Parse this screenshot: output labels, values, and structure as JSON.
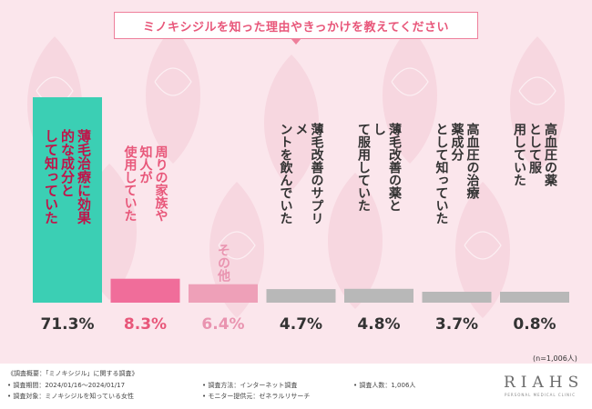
{
  "title": "ミノキシジルを知った理由やきっかけを教えてください",
  "colors": {
    "background": "#fbe6ec",
    "highlight_bar": "#3bcfb4",
    "highlight_text": "#e8577a",
    "second_bar": "#f06d9a",
    "second_text": "#e8577a",
    "third_bar": "#eea0b8",
    "third_text": "#e994b0",
    "other_bar": "#b8b8b8",
    "other_text": "#333333"
  },
  "chart_data": {
    "type": "bar",
    "categories": [
      "薄毛治療に効果的な成分として知っていた",
      "周りの家族や知人が使用していた",
      "その他",
      "薄毛改善のサプリメントを飲んでいた",
      "薄毛改善の薬として服用していた",
      "高血圧の治療薬成分として知っていた",
      "高血圧の薬として服用していた"
    ],
    "values": [
      71.3,
      8.3,
      6.4,
      4.7,
      4.8,
      3.7,
      0.8
    ],
    "value_labels": [
      "71.3%",
      "8.3%",
      "6.4%",
      "4.7%",
      "4.8%",
      "3.7%",
      "0.8%"
    ],
    "ylim": [
      0,
      71.3
    ],
    "n_label": "(n=1,006人)"
  },
  "footer": {
    "overview": "《調査概要：「ミノキシジル」に関する調査》",
    "period": "• 調査期間：2024/01/16～2024/01/17",
    "target": "• 調査対象：ミノキシジルを知っている女性",
    "method": "• 調査方法：インターネット調査",
    "provider": "• モニター提供元：ゼネラルリサーチ",
    "people": "• 調査人数：1,006人",
    "logo_main": "RIAHS",
    "logo_sub": "PERSONAL MEDICAL CLINIC"
  }
}
